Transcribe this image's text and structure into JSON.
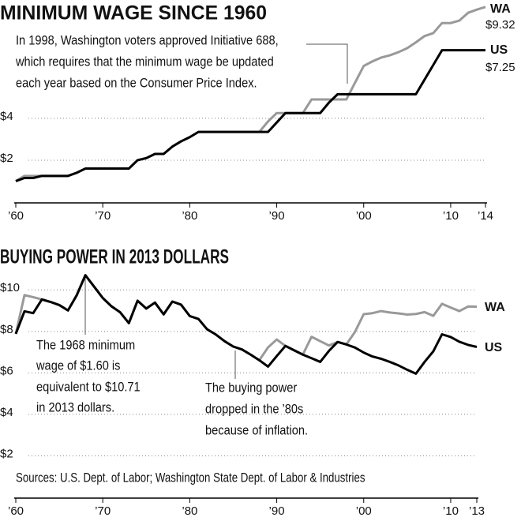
{
  "chart_data": [
    {
      "type": "line",
      "title": "MINIMUM WAGE SINCE 1960",
      "annotation": [
        "In 1998, Washington voters approved Initiative 688,",
        "which requires that the minimum wage be updated",
        "each year based on the Consumer Price Index."
      ],
      "x": [
        1960,
        1961,
        1962,
        1963,
        1964,
        1965,
        1966,
        1967,
        1968,
        1969,
        1970,
        1971,
        1972,
        1973,
        1974,
        1975,
        1976,
        1977,
        1978,
        1979,
        1980,
        1981,
        1982,
        1983,
        1984,
        1985,
        1986,
        1987,
        1988,
        1989,
        1990,
        1991,
        1992,
        1993,
        1994,
        1995,
        1996,
        1997,
        1998,
        1999,
        2000,
        2001,
        2002,
        2003,
        2004,
        2005,
        2006,
        2007,
        2008,
        2009,
        2010,
        2011,
        2012,
        2013,
        2014
      ],
      "series": [
        {
          "name": "WA",
          "color": "#999999",
          "values": [
            1.0,
            1.25,
            1.25,
            1.25,
            1.25,
            1.25,
            1.25,
            1.4,
            1.6,
            1.6,
            1.6,
            1.6,
            1.6,
            1.6,
            2.0,
            2.1,
            2.3,
            2.3,
            2.65,
            2.9,
            3.1,
            3.35,
            3.35,
            3.35,
            3.35,
            3.35,
            3.35,
            3.35,
            3.35,
            3.85,
            4.25,
            4.25,
            4.25,
            4.25,
            4.9,
            4.9,
            4.9,
            4.9,
            4.9,
            5.7,
            6.5,
            6.72,
            6.9,
            7.01,
            7.16,
            7.35,
            7.63,
            7.93,
            8.07,
            8.55,
            8.55,
            8.67,
            9.04,
            9.19,
            9.32
          ],
          "value_labels": [
            null,
            null,
            null,
            null,
            null,
            null,
            null,
            null,
            null,
            null,
            null,
            null,
            null,
            null,
            null,
            null,
            null,
            null,
            null,
            null,
            null,
            null,
            null,
            null,
            null,
            null,
            null,
            null,
            null,
            null,
            null,
            null,
            null,
            null,
            null,
            null,
            null,
            null,
            null,
            null,
            null,
            null,
            null,
            null,
            null,
            null,
            null,
            null,
            null,
            null,
            null,
            null,
            null,
            null,
            "$9.32"
          ]
        },
        {
          "name": "US",
          "color": "#000000",
          "values": [
            1.0,
            1.15,
            1.15,
            1.25,
            1.25,
            1.25,
            1.25,
            1.4,
            1.6,
            1.6,
            1.6,
            1.6,
            1.6,
            1.6,
            2.0,
            2.1,
            2.3,
            2.3,
            2.65,
            2.9,
            3.1,
            3.35,
            3.35,
            3.35,
            3.35,
            3.35,
            3.35,
            3.35,
            3.35,
            3.35,
            3.8,
            4.25,
            4.25,
            4.25,
            4.25,
            4.25,
            4.75,
            5.15,
            5.15,
            5.15,
            5.15,
            5.15,
            5.15,
            5.15,
            5.15,
            5.15,
            5.15,
            5.85,
            6.55,
            7.25,
            7.25,
            7.25,
            7.25,
            7.25,
            7.25
          ],
          "value_labels": [
            null,
            null,
            null,
            null,
            null,
            null,
            null,
            null,
            null,
            null,
            null,
            null,
            null,
            null,
            null,
            null,
            null,
            null,
            null,
            null,
            null,
            null,
            null,
            null,
            null,
            null,
            null,
            null,
            null,
            null,
            null,
            null,
            null,
            null,
            null,
            null,
            null,
            null,
            null,
            null,
            null,
            null,
            null,
            null,
            null,
            null,
            null,
            null,
            null,
            null,
            null,
            null,
            null,
            null,
            "$7.25"
          ]
        }
      ],
      "xlim": [
        1960,
        2014
      ],
      "xticks": [
        {
          "value": 1960,
          "label": "’60"
        },
        {
          "value": 1970,
          "label": "’70"
        },
        {
          "value": 1980,
          "label": "’80"
        },
        {
          "value": 1990,
          "label": "’90"
        },
        {
          "value": 2000,
          "label": "’00"
        },
        {
          "value": 2010,
          "label": "’10"
        },
        {
          "value": 2014,
          "label": "’14"
        }
      ],
      "ylim": [
        0,
        9.5
      ],
      "yticks": [
        {
          "value": 2,
          "label": "$2"
        },
        {
          "value": 4,
          "label": "$4"
        }
      ],
      "grid": true
    },
    {
      "type": "line",
      "title": "BUYING POWER IN 2013 DOLLARS",
      "annotations": [
        [
          "The 1968 minimum",
          "wage of $1.60 is",
          "equivalent to $10.71",
          "in 2013 dollars."
        ],
        [
          "The buying power",
          "dropped in the ’80s",
          "because of inflation."
        ]
      ],
      "source": "Sources: U.S. Dept. of Labor; Washington State Dept. of Labor & Industries",
      "x": [
        1960,
        1961,
        1962,
        1963,
        1964,
        1965,
        1966,
        1967,
        1968,
        1969,
        1970,
        1971,
        1972,
        1973,
        1974,
        1975,
        1976,
        1977,
        1978,
        1979,
        1980,
        1981,
        1982,
        1983,
        1984,
        1985,
        1986,
        1987,
        1988,
        1989,
        1990,
        1991,
        1992,
        1993,
        1994,
        1995,
        1996,
        1997,
        1998,
        1999,
        2000,
        2001,
        2002,
        2003,
        2004,
        2005,
        2006,
        2007,
        2008,
        2009,
        2010,
        2011,
        2012,
        2013
      ],
      "series": [
        {
          "name": "WA",
          "color": "#999999",
          "values": [
            7.88,
            9.75,
            9.65,
            9.54,
            9.42,
            9.27,
            9.01,
            9.74,
            10.71,
            10.16,
            9.61,
            9.21,
            8.92,
            8.4,
            9.48,
            9.1,
            9.39,
            8.82,
            9.44,
            9.29,
            8.74,
            8.6,
            8.1,
            7.85,
            7.53,
            7.27,
            7.13,
            6.88,
            6.61,
            7.23,
            7.61,
            7.3,
            7.09,
            6.88,
            7.74,
            7.53,
            7.32,
            7.49,
            7.37,
            7.98,
            8.83,
            8.88,
            8.98,
            8.91,
            8.87,
            8.81,
            8.84,
            8.93,
            8.75,
            9.33,
            9.15,
            8.98,
            9.2,
            9.19
          ]
        },
        {
          "name": "US",
          "color": "#000000",
          "values": [
            7.88,
            8.97,
            8.88,
            9.54,
            9.42,
            9.27,
            9.01,
            9.74,
            10.71,
            10.16,
            9.61,
            9.21,
            8.92,
            8.4,
            9.48,
            9.1,
            9.39,
            8.82,
            9.44,
            9.29,
            8.74,
            8.6,
            8.1,
            7.85,
            7.53,
            7.27,
            7.13,
            6.88,
            6.61,
            6.3,
            6.81,
            7.3,
            7.09,
            6.88,
            6.71,
            6.53,
            7.06,
            7.49,
            7.37,
            7.22,
            6.98,
            6.79,
            6.68,
            6.53,
            6.36,
            6.15,
            5.96,
            6.53,
            7.04,
            7.86,
            7.73,
            7.5,
            7.35,
            7.25
          ]
        }
      ],
      "xlim": [
        1960,
        2013
      ],
      "xticks": [
        {
          "value": 1960,
          "label": "’60"
        },
        {
          "value": 1970,
          "label": "’70"
        },
        {
          "value": 1980,
          "label": "’80"
        },
        {
          "value": 1990,
          "label": "’90"
        },
        {
          "value": 2000,
          "label": "’00"
        },
        {
          "value": 2010,
          "label": "’10"
        },
        {
          "value": 2013,
          "label": "’13"
        }
      ],
      "ylim": [
        0,
        11
      ],
      "yticks": [
        {
          "value": 2,
          "label": "$2"
        },
        {
          "value": 4,
          "label": "$4"
        },
        {
          "value": 6,
          "label": "$6"
        },
        {
          "value": 8,
          "label": "$8"
        },
        {
          "value": 10,
          "label": "$10"
        }
      ],
      "grid": true
    }
  ]
}
